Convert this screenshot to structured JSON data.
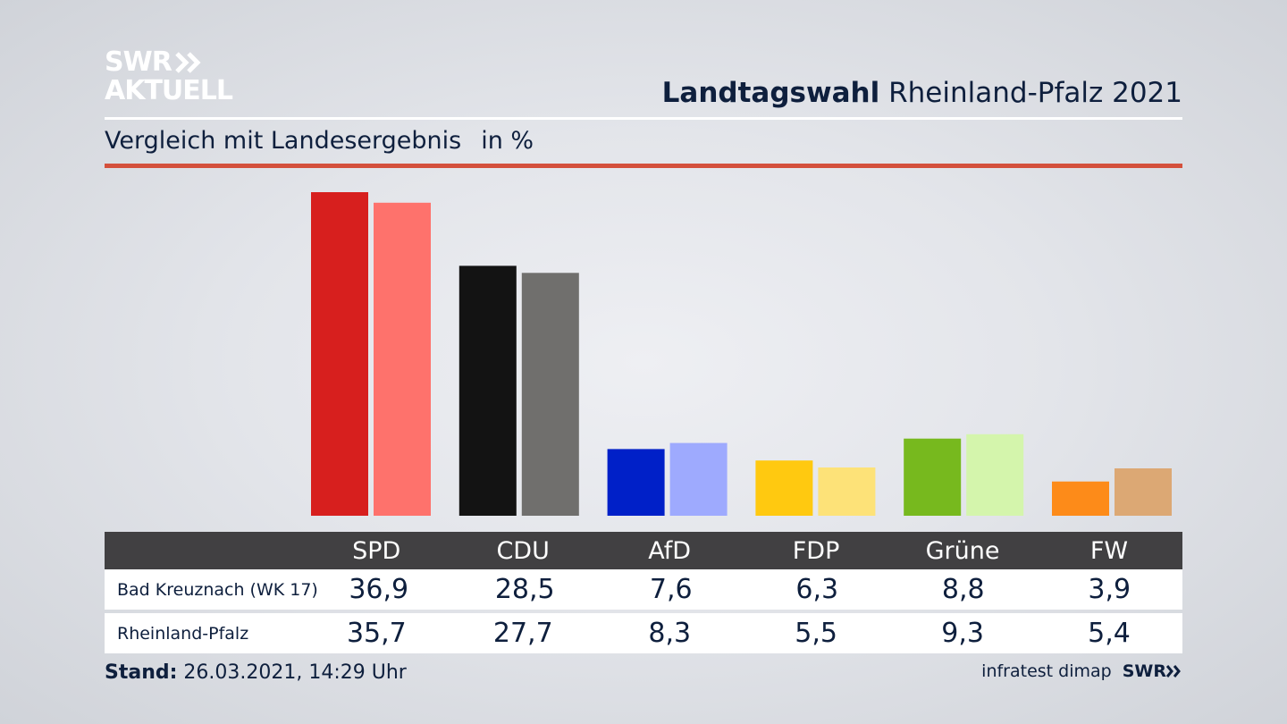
{
  "brand": {
    "logo_line1": "SWR",
    "logo_line2": "AKTUELL",
    "source_logo": "SWR"
  },
  "header": {
    "title_bold": "Landtagswahl",
    "title_rest": "Rheinland-Pfalz 2021"
  },
  "subheader": {
    "text": "Vergleich mit Landesergebnis",
    "unit": "in %"
  },
  "footer": {
    "stand_label": "Stand:",
    "stand_value": "26.03.2021, 14:29 Uhr",
    "source": "infratest dimap"
  },
  "colors": {
    "accent_rule": "#d4503c",
    "table_header": "#414042",
    "series1": [
      "#d71f1e",
      "#131313",
      "#0020c8",
      "#ffc910",
      "#77b91e",
      "#fd8b19"
    ],
    "series2": [
      "#fe726c",
      "#706f6d",
      "#9eaafe",
      "#fde278",
      "#d4f5ac",
      "#dca874"
    ]
  },
  "chart_data": {
    "type": "bar",
    "categories": [
      "SPD",
      "CDU",
      "AfD",
      "FDP",
      "Grüne",
      "FW"
    ],
    "series": [
      {
        "name": "Bad Kreuznach (WK 17)",
        "values": [
          36.9,
          28.5,
          7.6,
          6.3,
          8.8,
          3.9
        ],
        "labels": [
          "36,9",
          "28,5",
          "7,6",
          "6,3",
          "8,8",
          "3,9"
        ]
      },
      {
        "name": "Rheinland-Pfalz",
        "values": [
          35.7,
          27.7,
          8.3,
          5.5,
          9.3,
          5.4
        ],
        "labels": [
          "35,7",
          "27,7",
          "8,3",
          "5,5",
          "9,3",
          "5,4"
        ]
      }
    ],
    "ylim": [
      0,
      36.9
    ],
    "grid": false,
    "legend": "table-below"
  }
}
